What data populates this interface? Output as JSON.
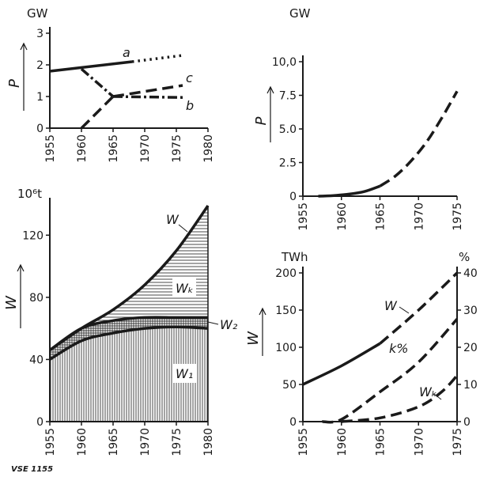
{
  "figure": {
    "footer": "VSE 1155"
  },
  "chart_data": [
    {
      "type": "line",
      "id": "tl",
      "unit": "GW",
      "ylabel": "P",
      "xlim": [
        1955,
        1980
      ],
      "ylim": [
        0,
        3
      ],
      "xticks": [
        1955,
        1960,
        1965,
        1970,
        1975,
        1980
      ],
      "yticks": [
        0,
        1,
        2,
        3
      ],
      "series": [
        {
          "name": "a",
          "style": "solid",
          "x": [
            1955,
            1968
          ],
          "y": [
            1.8,
            2.1
          ]
        },
        {
          "name": "",
          "style": "dotted",
          "x": [
            1968,
            1976
          ],
          "y": [
            2.1,
            2.3
          ]
        },
        {
          "name": "",
          "style": "dashdot",
          "x": [
            1960,
            1965
          ],
          "y": [
            1.87,
            1.0
          ]
        },
        {
          "name": "b",
          "style": "dashdot",
          "x": [
            1965,
            1976
          ],
          "y": [
            1.0,
            0.97
          ]
        },
        {
          "name": "",
          "style": "dashed",
          "x": [
            1960,
            1965
          ],
          "y": [
            0.0,
            1.0
          ]
        },
        {
          "name": "c",
          "style": "dashed",
          "x": [
            1965,
            1976
          ],
          "y": [
            1.0,
            1.35
          ]
        }
      ]
    },
    {
      "type": "line",
      "id": "tr",
      "unit": "GW",
      "ylabel": "P",
      "xlim": [
        1955,
        1975
      ],
      "ylim": [
        0,
        10
      ],
      "xticks": [
        1955,
        1960,
        1965,
        1970,
        1975
      ],
      "yticks": [
        "0",
        "2.5",
        "5.0",
        "7.5",
        "10,0"
      ],
      "series": [
        {
          "name": "",
          "style": "solid",
          "x": [
            1957,
            1959,
            1961,
            1963,
            1965
          ],
          "y": [
            0.0,
            0.05,
            0.15,
            0.35,
            0.75
          ]
        },
        {
          "name": "",
          "style": "dashed",
          "x": [
            1965,
            1967,
            1969,
            1971,
            1973,
            1975
          ],
          "y": [
            0.75,
            1.5,
            2.6,
            4.0,
            5.8,
            7.8
          ]
        }
      ]
    },
    {
      "type": "area",
      "id": "bl",
      "unit": "10⁶t",
      "ylabel": "W",
      "xlim": [
        1955,
        1980
      ],
      "ylim": [
        0,
        140
      ],
      "xticks": [
        1955,
        1960,
        1965,
        1970,
        1975,
        1980
      ],
      "yticks": [
        0,
        40,
        80,
        120
      ],
      "x": [
        1955,
        1960,
        1965,
        1970,
        1975,
        1980
      ],
      "series": [
        {
          "name": "W₁",
          "values": [
            40,
            52,
            57,
            60,
            61,
            60
          ]
        },
        {
          "name": "W₂",
          "values": [
            46,
            60,
            65,
            67,
            67,
            67
          ]
        },
        {
          "name": "W",
          "values": [
            46,
            60,
            72,
            88,
            110,
            139
          ]
        }
      ],
      "region_labels": {
        "upper": "Wₖ"
      }
    },
    {
      "type": "line",
      "id": "br",
      "unit_left": "TWh",
      "unit_right": "%",
      "ylabel": "W",
      "xlim": [
        1955,
        1975
      ],
      "ylim": [
        0,
        200
      ],
      "ylim_right": [
        0,
        40
      ],
      "xticks": [
        1955,
        1960,
        1965,
        1970,
        1975
      ],
      "yticks": [
        0,
        50,
        100,
        150,
        200
      ],
      "yticks_right": [
        0,
        10,
        20,
        30,
        40
      ],
      "series": [
        {
          "name": "W",
          "style": "solid-dashed",
          "x": [
            1955,
            1960,
            1965,
            1970,
            1975
          ],
          "y": [
            50,
            75,
            105,
            150,
            200
          ]
        },
        {
          "name": "k%",
          "style": "dashed",
          "x": [
            1957.5,
            1960,
            1965,
            1970,
            1975
          ],
          "y": [
            0,
            3,
            40,
            80,
            138
          ]
        },
        {
          "name": "Wₖ",
          "style": "dashed",
          "x": [
            1960,
            1965,
            1970,
            1973,
            1975
          ],
          "y": [
            0,
            5,
            20,
            40,
            62
          ]
        }
      ]
    }
  ]
}
